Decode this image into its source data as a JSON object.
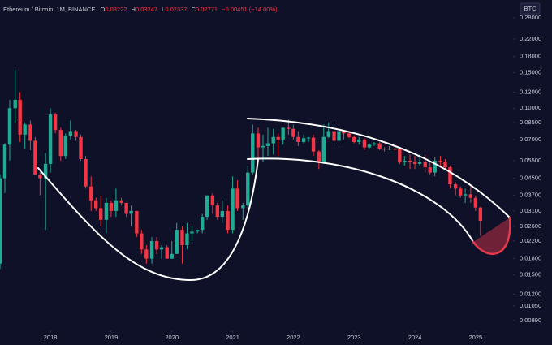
{
  "chart_data": {
    "type": "candlestick",
    "title": "Ethereum / Bitcoin, 1M, BINANCE",
    "ohlc_letters": [
      "O",
      "H",
      "L",
      "C"
    ],
    "change": "−0.00451 (−14.00%)",
    "currency": "BTC",
    "log_scale": true,
    "up_color": "#22ab94",
    "down_color": "#f23645",
    "xlim": [
      2017.17,
      2025.59
    ],
    "xticks": [
      2018,
      2019,
      2020,
      2021,
      2022,
      2023,
      2024,
      2025
    ],
    "ylim": [
      0.0081,
      0.343
    ],
    "yticks": [
      {
        "value": 0.28,
        "label": "0.28000"
      },
      {
        "value": 0.22,
        "label": "0.22000"
      },
      {
        "value": 0.18,
        "label": "0.18000"
      },
      {
        "value": 0.15,
        "label": "0.15000"
      },
      {
        "value": 0.12,
        "label": "0.12000"
      },
      {
        "value": 0.1,
        "label": "0.10000"
      },
      {
        "value": 0.085,
        "label": "0.08500"
      },
      {
        "value": 0.07,
        "label": "0.07000"
      },
      {
        "value": 0.055,
        "label": "0.05500"
      },
      {
        "value": 0.045,
        "label": "0.04500"
      },
      {
        "value": 0.037,
        "label": "0.03700"
      },
      {
        "value": 0.031,
        "label": "0.03100"
      },
      {
        "value": 0.026,
        "label": "0.02600"
      },
      {
        "value": 0.022,
        "label": "0.02200"
      },
      {
        "value": 0.018,
        "label": "0.01800"
      },
      {
        "value": 0.015,
        "label": "0.01500"
      },
      {
        "value": 0.012,
        "label": "0.01200"
      },
      {
        "value": 0.0105,
        "label": "0.01050"
      },
      {
        "value": 0.0089,
        "label": "0.00890"
      }
    ],
    "x": [
      2017.17,
      2017.25,
      2017.33,
      2017.42,
      2017.5,
      2017.58,
      2017.67,
      2017.75,
      2017.83,
      2017.92,
      2018.0,
      2018.08,
      2018.17,
      2018.25,
      2018.33,
      2018.42,
      2018.5,
      2018.58,
      2018.67,
      2018.75,
      2018.83,
      2018.92,
      2019.0,
      2019.08,
      2019.17,
      2019.25,
      2019.33,
      2019.42,
      2019.5,
      2019.58,
      2019.67,
      2019.75,
      2019.83,
      2019.92,
      2020.0,
      2020.08,
      2020.17,
      2020.25,
      2020.33,
      2020.42,
      2020.5,
      2020.58,
      2020.67,
      2020.75,
      2020.83,
      2020.92,
      2021.0,
      2021.08,
      2021.17,
      2021.25,
      2021.33,
      2021.42,
      2021.5,
      2021.58,
      2021.67,
      2021.75,
      2021.83,
      2021.92,
      2022.0,
      2022.08,
      2022.17,
      2022.25,
      2022.33,
      2022.42,
      2022.5,
      2022.58,
      2022.67,
      2022.75,
      2022.83,
      2022.92,
      2023.0,
      2023.08,
      2023.17,
      2023.25,
      2023.33,
      2023.42,
      2023.5,
      2023.58,
      2023.67,
      2023.75,
      2023.83,
      2023.92,
      2024.0,
      2024.08,
      2024.17,
      2024.25,
      2024.33,
      2024.42,
      2024.5,
      2024.58,
      2024.67,
      2024.75,
      2024.83,
      2024.92,
      2025.0,
      2025.08
    ],
    "ohlc": [
      [
        0.017,
        0.047,
        0.016,
        0.045
      ],
      [
        0.045,
        0.067,
        0.038,
        0.066
      ],
      [
        0.066,
        0.11,
        0.055,
        0.1
      ],
      [
        0.1,
        0.155,
        0.085,
        0.11
      ],
      [
        0.11,
        0.12,
        0.068,
        0.074
      ],
      [
        0.074,
        0.085,
        0.063,
        0.083
      ],
      [
        0.083,
        0.087,
        0.062,
        0.069
      ],
      [
        0.069,
        0.072,
        0.047,
        0.047
      ],
      [
        0.047,
        0.05,
        0.037,
        0.045
      ],
      [
        0.045,
        0.06,
        0.025,
        0.053
      ],
      [
        0.053,
        0.1,
        0.048,
        0.093
      ],
      [
        0.093,
        0.095,
        0.075,
        0.078
      ],
      [
        0.078,
        0.08,
        0.055,
        0.058
      ],
      [
        0.058,
        0.075,
        0.056,
        0.073
      ],
      [
        0.073,
        0.087,
        0.07,
        0.077
      ],
      [
        0.077,
        0.078,
        0.069,
        0.072
      ],
      [
        0.072,
        0.074,
        0.055,
        0.056
      ],
      [
        0.056,
        0.058,
        0.04,
        0.041
      ],
      [
        0.041,
        0.046,
        0.031,
        0.035
      ],
      [
        0.035,
        0.036,
        0.031,
        0.032
      ],
      [
        0.032,
        0.037,
        0.026,
        0.028
      ],
      [
        0.028,
        0.036,
        0.024,
        0.034
      ],
      [
        0.034,
        0.035,
        0.029,
        0.031
      ],
      [
        0.031,
        0.04,
        0.029,
        0.035
      ],
      [
        0.035,
        0.036,
        0.033,
        0.034
      ],
      [
        0.034,
        0.034,
        0.029,
        0.03
      ],
      [
        0.03,
        0.033,
        0.026,
        0.031
      ],
      [
        0.031,
        0.031,
        0.023,
        0.024
      ],
      [
        0.024,
        0.025,
        0.019,
        0.02
      ],
      [
        0.02,
        0.021,
        0.017,
        0.018
      ],
      [
        0.018,
        0.023,
        0.017,
        0.022
      ],
      [
        0.022,
        0.023,
        0.019,
        0.02
      ],
      [
        0.02,
        0.021,
        0.018,
        0.0205
      ],
      [
        0.0205,
        0.021,
        0.018,
        0.018
      ],
      [
        0.018,
        0.022,
        0.018,
        0.019
      ],
      [
        0.019,
        0.027,
        0.019,
        0.025
      ],
      [
        0.025,
        0.026,
        0.017,
        0.021
      ],
      [
        0.021,
        0.027,
        0.02,
        0.024
      ],
      [
        0.024,
        0.026,
        0.022,
        0.0245
      ],
      [
        0.0245,
        0.025,
        0.024,
        0.025
      ],
      [
        0.025,
        0.03,
        0.024,
        0.029
      ],
      [
        0.029,
        0.037,
        0.028,
        0.037
      ],
      [
        0.037,
        0.038,
        0.03,
        0.033
      ],
      [
        0.033,
        0.034,
        0.028,
        0.029
      ],
      [
        0.029,
        0.035,
        0.027,
        0.031
      ],
      [
        0.031,
        0.033,
        0.024,
        0.025
      ],
      [
        0.025,
        0.046,
        0.024,
        0.04
      ],
      [
        0.04,
        0.044,
        0.031,
        0.032
      ],
      [
        0.032,
        0.034,
        0.028,
        0.033
      ],
      [
        0.033,
        0.052,
        0.032,
        0.048
      ],
      [
        0.048,
        0.083,
        0.047,
        0.075
      ],
      [
        0.075,
        0.08,
        0.055,
        0.064
      ],
      [
        0.064,
        0.074,
        0.054,
        0.065
      ],
      [
        0.065,
        0.08,
        0.058,
        0.067
      ],
      [
        0.067,
        0.079,
        0.059,
        0.072
      ],
      [
        0.072,
        0.075,
        0.058,
        0.07
      ],
      [
        0.07,
        0.08,
        0.066,
        0.08
      ],
      [
        0.08,
        0.088,
        0.074,
        0.079
      ],
      [
        0.079,
        0.083,
        0.07,
        0.072
      ],
      [
        0.072,
        0.077,
        0.065,
        0.068
      ],
      [
        0.068,
        0.074,
        0.067,
        0.071
      ],
      [
        0.071,
        0.072,
        0.068,
        0.0715
      ],
      [
        0.0715,
        0.074,
        0.058,
        0.061
      ],
      [
        0.061,
        0.062,
        0.05,
        0.054
      ],
      [
        0.054,
        0.083,
        0.053,
        0.072
      ],
      [
        0.072,
        0.085,
        0.071,
        0.077
      ],
      [
        0.077,
        0.085,
        0.065,
        0.069
      ],
      [
        0.069,
        0.081,
        0.066,
        0.077
      ],
      [
        0.077,
        0.078,
        0.07,
        0.075
      ],
      [
        0.075,
        0.077,
        0.071,
        0.072
      ],
      [
        0.072,
        0.073,
        0.067,
        0.068
      ],
      [
        0.068,
        0.072,
        0.066,
        0.07
      ],
      [
        0.07,
        0.071,
        0.062,
        0.064
      ],
      [
        0.064,
        0.067,
        0.063,
        0.066
      ],
      [
        0.066,
        0.068,
        0.065,
        0.067
      ],
      [
        0.067,
        0.068,
        0.062,
        0.063
      ],
      [
        0.063,
        0.064,
        0.061,
        0.0625
      ],
      [
        0.0625,
        0.065,
        0.062,
        0.063
      ],
      [
        0.063,
        0.0635,
        0.062,
        0.0628
      ],
      [
        0.0628,
        0.064,
        0.053,
        0.054
      ],
      [
        0.054,
        0.058,
        0.052,
        0.055
      ],
      [
        0.055,
        0.059,
        0.05,
        0.054
      ],
      [
        0.054,
        0.058,
        0.05,
        0.053
      ],
      [
        0.053,
        0.059,
        0.052,
        0.054
      ],
      [
        0.054,
        0.059,
        0.048,
        0.051
      ],
      [
        0.051,
        0.054,
        0.047,
        0.048
      ],
      [
        0.048,
        0.057,
        0.046,
        0.055
      ],
      [
        0.055,
        0.058,
        0.052,
        0.054
      ],
      [
        0.054,
        0.056,
        0.05,
        0.051
      ],
      [
        0.051,
        0.052,
        0.04,
        0.042
      ],
      [
        0.042,
        0.043,
        0.037,
        0.04
      ],
      [
        0.04,
        0.041,
        0.036,
        0.037
      ],
      [
        0.037,
        0.04,
        0.034,
        0.0375
      ],
      [
        0.0375,
        0.041,
        0.034,
        0.036
      ],
      [
        0.036,
        0.037,
        0.031,
        0.03222
      ],
      [
        0.03222,
        0.03247,
        0.02337,
        0.02771
      ]
    ]
  }
}
